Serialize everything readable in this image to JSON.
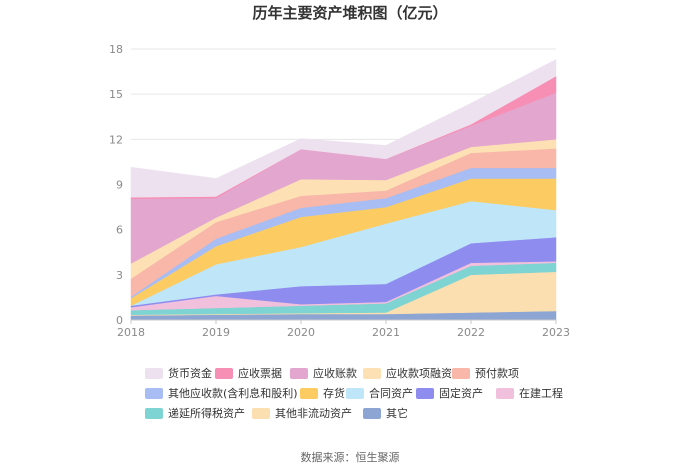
{
  "chart_data": {
    "type": "area",
    "stacked": true,
    "title": "历年主要资产堆积图（亿元）",
    "source": "数据来源：恒生聚源",
    "x": [
      "2018",
      "2019",
      "2020",
      "2021",
      "2022",
      "2023"
    ],
    "ylim": [
      0,
      18
    ],
    "yticks": [
      0,
      3,
      6,
      9,
      12,
      15,
      18
    ],
    "grid": true,
    "legend_position": "bottom",
    "series": [
      {
        "name": "其它",
        "color": "#8da5d3",
        "values": [
          0.3,
          0.35,
          0.4,
          0.4,
          0.5,
          0.6
        ]
      },
      {
        "name": "其他非流动资产",
        "color": "#fbdfb0",
        "values": [
          0.05,
          0.05,
          0.05,
          0.1,
          2.5,
          2.6
        ]
      },
      {
        "name": "递延所得税资产",
        "color": "#7ed3d3",
        "values": [
          0.3,
          0.4,
          0.5,
          0.6,
          0.6,
          0.6
        ]
      },
      {
        "name": "在建工程",
        "color": "#f0c0dc",
        "values": [
          0.2,
          0.8,
          0.1,
          0.1,
          0.2,
          0.1
        ]
      },
      {
        "name": "固定资产",
        "color": "#8f8cf0",
        "values": [
          0.1,
          0.1,
          1.2,
          1.2,
          1.3,
          1.6
        ]
      },
      {
        "name": "合同资产",
        "color": "#bfe6f8",
        "values": [
          0.0,
          2.0,
          2.6,
          4.0,
          2.8,
          1.8
        ]
      },
      {
        "name": "存货",
        "color": "#fccc62",
        "values": [
          0.5,
          1.2,
          2.0,
          1.1,
          1.5,
          2.1
        ]
      },
      {
        "name": "其他应收款(含利息和股利)",
        "color": "#a7bdf3",
        "values": [
          0.1,
          0.5,
          0.6,
          0.6,
          0.7,
          0.7
        ]
      },
      {
        "name": "预付款项",
        "color": "#f8b7a8",
        "values": [
          1.2,
          1.1,
          0.8,
          0.5,
          1.0,
          1.3
        ]
      },
      {
        "name": "应收款项融资",
        "color": "#fde1b4",
        "values": [
          1.0,
          0.3,
          1.1,
          0.7,
          0.4,
          0.6
        ]
      },
      {
        "name": "应收账款",
        "color": "#e3a6cf",
        "values": [
          4.3,
          1.3,
          2.0,
          1.4,
          1.4,
          3.1
        ]
      },
      {
        "name": "应收票据",
        "color": "#f78fb5",
        "values": [
          0.1,
          0.1,
          0.0,
          0.0,
          0.1,
          1.1
        ]
      },
      {
        "name": "货币资金",
        "color": "#ede1f0",
        "values": [
          2.0,
          1.2,
          0.7,
          0.9,
          1.4,
          1.1
        ]
      }
    ],
    "legend_order": [
      "货币资金",
      "应收票据",
      "应收账款",
      "应收款项融资",
      "预付款项",
      "其他应收款(含利息和股利)",
      "存货",
      "合同资产",
      "固定资产",
      "在建工程",
      "递延所得税资产",
      "其他非流动资产",
      "其它"
    ]
  }
}
